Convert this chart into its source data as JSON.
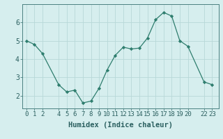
{
  "x": [
    0,
    1,
    2,
    4,
    5,
    6,
    7,
    8,
    9,
    10,
    11,
    12,
    13,
    14,
    15,
    16,
    17,
    18,
    19,
    20,
    22,
    23
  ],
  "y": [
    5.0,
    4.8,
    4.3,
    2.6,
    2.2,
    2.3,
    1.6,
    1.7,
    2.4,
    3.4,
    4.2,
    4.65,
    4.55,
    4.6,
    5.15,
    6.15,
    6.55,
    6.35,
    5.0,
    4.7,
    2.75,
    2.6
  ],
  "line_color": "#2e7d6e",
  "marker": "D",
  "marker_size": 2.2,
  "bg_color": "#d6eeee",
  "grid_color": "#b8d8d8",
  "spine_color": "#4a8080",
  "xlabel": "Humidex (Indice chaleur)",
  "xticks": [
    0,
    1,
    2,
    4,
    5,
    6,
    7,
    8,
    9,
    10,
    11,
    12,
    13,
    14,
    15,
    16,
    17,
    18,
    19,
    20,
    22,
    23
  ],
  "xtick_labels": [
    "0",
    "1",
    "2",
    "4",
    "5",
    "6",
    "7",
    "8",
    "9",
    "10",
    "11",
    "12",
    "13",
    "14",
    "15",
    "16",
    "17",
    "18",
    "19",
    "20",
    "22",
    "23"
  ],
  "yticks": [
    2,
    3,
    4,
    5,
    6
  ],
  "ylim": [
    1.3,
    7.0
  ],
  "xlim": [
    -0.5,
    23.8
  ],
  "tick_color": "#2a5f5f",
  "label_fontsize": 7.5,
  "tick_fontsize": 6.5
}
